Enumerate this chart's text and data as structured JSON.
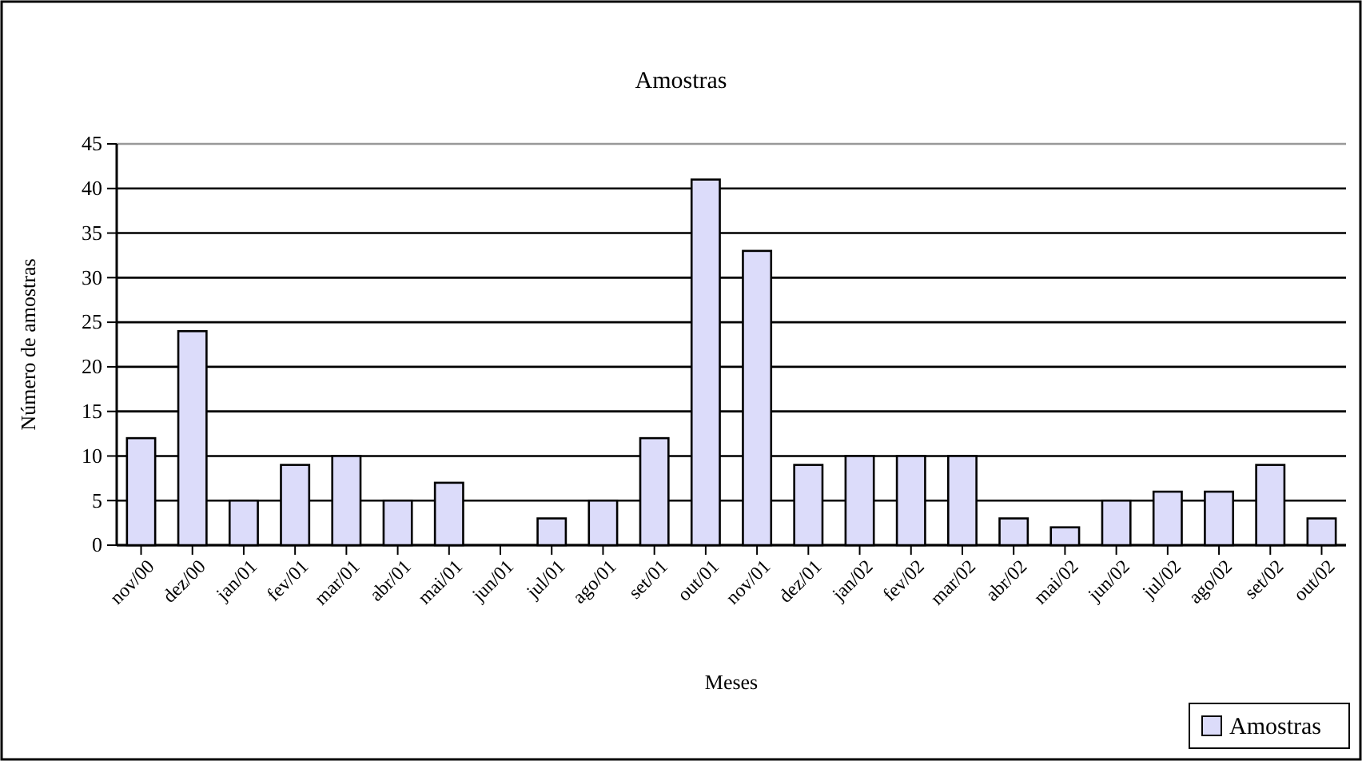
{
  "chart_data": {
    "type": "bar",
    "title": "Amostras",
    "xlabel": "Meses",
    "ylabel": "Número de amostras",
    "categories": [
      "nov/00",
      "dez/00",
      "jan/01",
      "fev/01",
      "mar/01",
      "abr/01",
      "mai/01",
      "jun/01",
      "jul/01",
      "ago/01",
      "set/01",
      "out/01",
      "nov/01",
      "dez/01",
      "jan/02",
      "fev/02",
      "mar/02",
      "abr/02",
      "mai/02",
      "jun/02",
      "jul/02",
      "ago/02",
      "set/02",
      "out/02"
    ],
    "series": [
      {
        "name": "Amostras",
        "color": "#dcdcfa",
        "values": [
          12,
          24,
          5,
          9,
          10,
          5,
          7,
          0,
          3,
          5,
          12,
          41,
          33,
          9,
          10,
          10,
          10,
          3,
          2,
          5,
          6,
          6,
          9,
          3
        ]
      }
    ],
    "ylim": [
      0,
      45
    ],
    "yticks": [
      0,
      5,
      10,
      15,
      20,
      25,
      30,
      35,
      40,
      45
    ],
    "grid": "y",
    "legend": "bottom right"
  }
}
